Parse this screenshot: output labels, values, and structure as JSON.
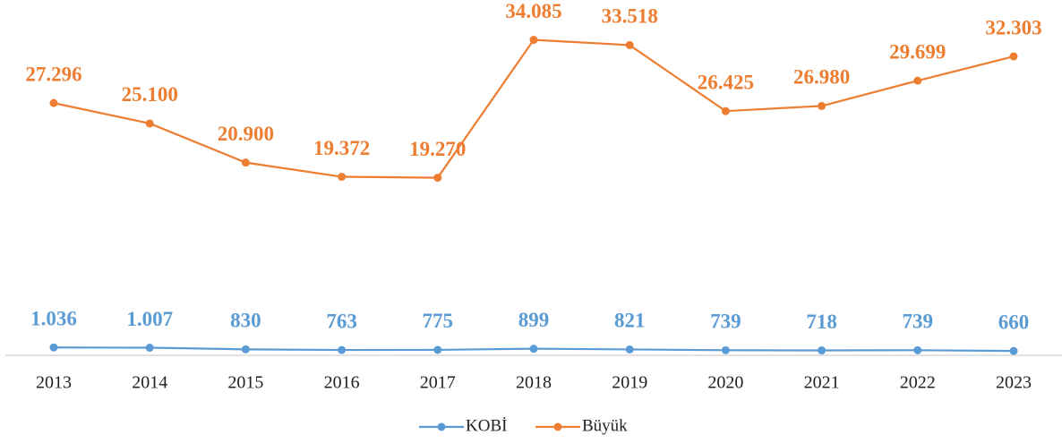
{
  "chart_data": {
    "type": "line",
    "categories": [
      "2013",
      "2014",
      "2015",
      "2016",
      "2017",
      "2018",
      "2019",
      "2020",
      "2021",
      "2022",
      "2023"
    ],
    "series": [
      {
        "name": "KOBİ",
        "color": "#5b9bd5",
        "values": [
          1036,
          1007,
          830,
          763,
          775,
          899,
          821,
          739,
          718,
          739,
          660
        ],
        "value_labels": [
          "1.036",
          "1.007",
          "830",
          "763",
          "775",
          "899",
          "821",
          "739",
          "718",
          "739",
          "660"
        ]
      },
      {
        "name": "Büyük",
        "color": "#ed7d31",
        "values": [
          27296,
          25100,
          20900,
          19372,
          19270,
          34085,
          33518,
          26425,
          26980,
          29699,
          32303
        ],
        "value_labels": [
          "27.296",
          "25.100",
          "20.900",
          "19.372",
          "19.270",
          "34.085",
          "33.518",
          "26.425",
          "26.980",
          "29.699",
          "32.303"
        ]
      }
    ],
    "ylim": [
      0,
      35000
    ]
  }
}
